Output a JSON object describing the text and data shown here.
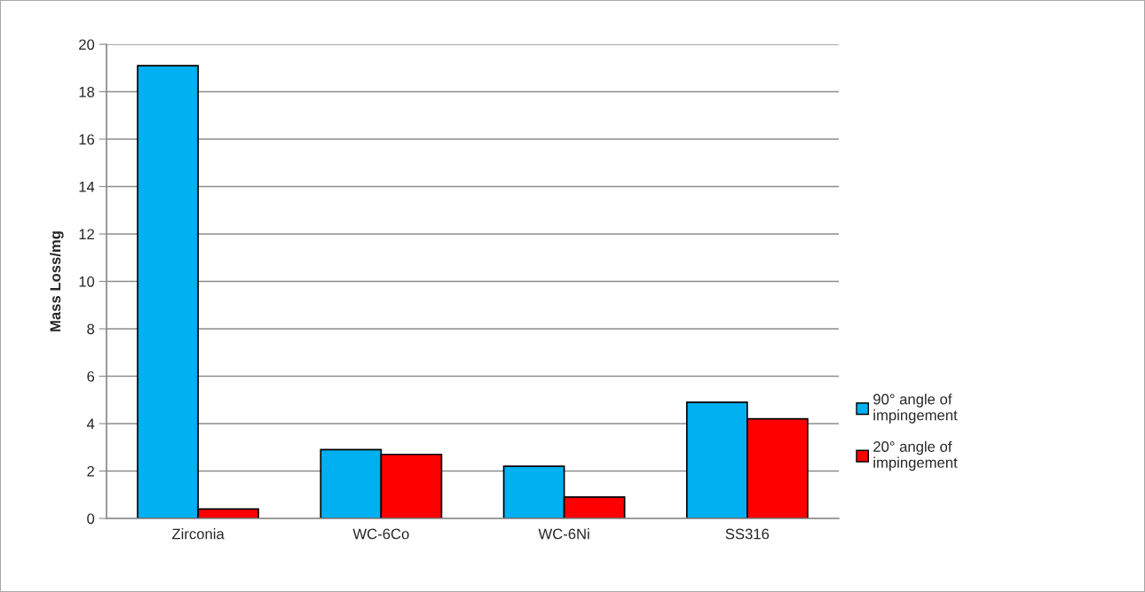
{
  "chart_data": {
    "type": "bar",
    "ylabel": "Mass Loss/mg",
    "categories": [
      "Zirconia",
      "WC-6Co",
      "WC-6Ni",
      "SS316"
    ],
    "series": [
      {
        "name": "90° angle of impingement",
        "color": "#00b0f0",
        "values": [
          19.1,
          2.9,
          2.2,
          4.9
        ]
      },
      {
        "name": "20° angle of impingement",
        "color": "#ff0000",
        "values": [
          0.4,
          2.7,
          0.9,
          4.2
        ]
      }
    ],
    "ylim": [
      0,
      20
    ],
    "yticks": [
      0,
      2,
      4,
      6,
      8,
      10,
      12,
      14,
      16,
      18,
      20
    ],
    "grid": "y",
    "legend": "right"
  }
}
